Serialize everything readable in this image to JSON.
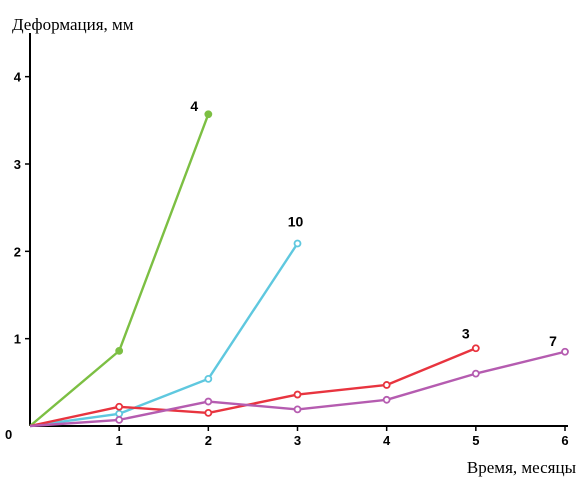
{
  "chart_data": {
    "type": "line",
    "ylabel": "Деформация, мм",
    "xlabel": "Время, месяцы",
    "origin_label": "0",
    "xlim": [
      0,
      6
    ],
    "ylim": [
      0,
      4.5
    ],
    "x_ticks": [
      "1",
      "2",
      "3",
      "4",
      "5",
      "6"
    ],
    "y_ticks": [
      "1",
      "2",
      "3",
      "4"
    ],
    "grid": false,
    "series": [
      {
        "name": "4",
        "color": "#7cbf43",
        "filled_markers": true,
        "x": [
          0,
          1,
          2
        ],
        "y": [
          0.0,
          0.86,
          3.57
        ]
      },
      {
        "name": "10",
        "color": "#5fc8df",
        "filled_markers": false,
        "x": [
          0,
          1,
          2,
          3
        ],
        "y": [
          0.0,
          0.14,
          0.54,
          2.09
        ]
      },
      {
        "name": "3",
        "color": "#e8343f",
        "filled_markers": false,
        "x": [
          0,
          1,
          2,
          3,
          4,
          5
        ],
        "y": [
          0.0,
          0.22,
          0.15,
          0.36,
          0.47,
          0.89
        ]
      },
      {
        "name": "7",
        "color": "#b55cb0",
        "filled_markers": false,
        "x": [
          0,
          1,
          2,
          3,
          4,
          5,
          6
        ],
        "y": [
          0.0,
          0.07,
          0.28,
          0.19,
          0.3,
          0.6,
          0.85
        ]
      }
    ]
  }
}
